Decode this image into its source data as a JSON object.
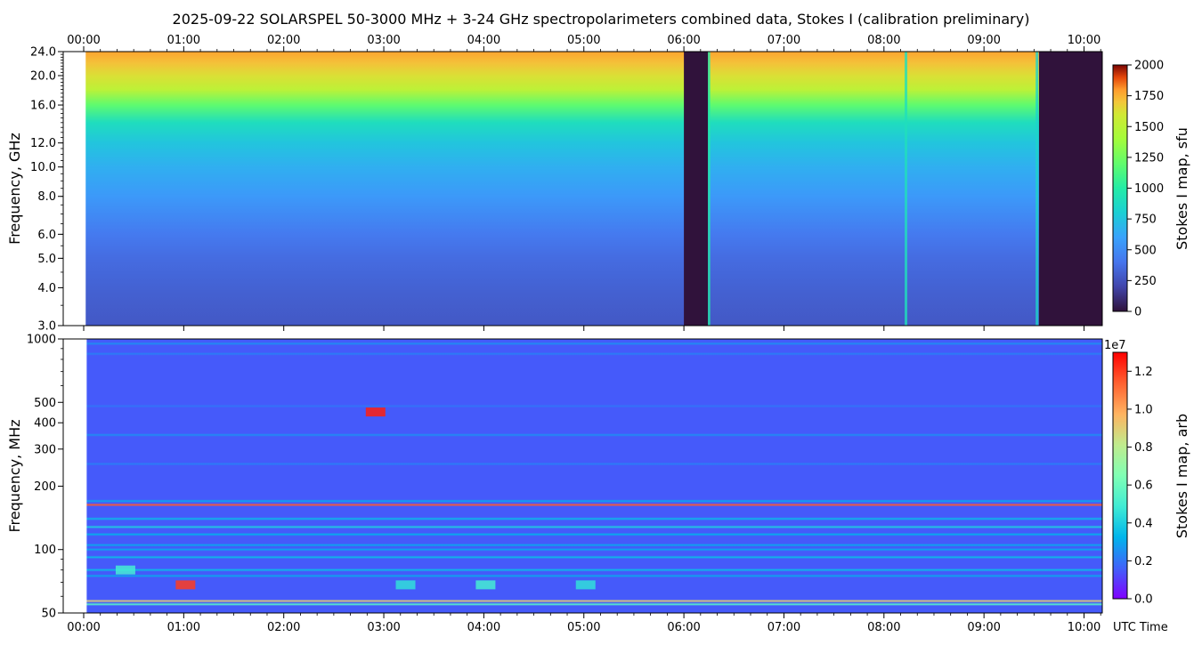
{
  "title": "2025-09-22  SOLARSPEL  50-3000 MHz  +  3-24 GHz  spectropolarimeters combined data,  Stokes I  (calibration preliminary)",
  "x_tick_labels": [
    "00:00",
    "01:00",
    "02:00",
    "03:00",
    "04:00",
    "05:00",
    "06:00",
    "07:00",
    "08:00",
    "09:00",
    "10:00"
  ],
  "x_axis_label": "UTC Time",
  "top_panel": {
    "ylabel": "Frequency, GHz",
    "y_tick_labels": [
      "3.0",
      "4.0",
      "5.0",
      "6.0",
      "8.0",
      "10.0",
      "12.0",
      "16.0",
      "20.0",
      "24.0"
    ],
    "colorbar_label": "Stokes I map, sfu",
    "colorbar_ticks": [
      "0",
      "250",
      "500",
      "750",
      "1000",
      "1250",
      "1500",
      "1750",
      "2000"
    ]
  },
  "bottom_panel": {
    "ylabel": "Frequency, MHz",
    "y_tick_labels": [
      "50",
      "100",
      "200",
      "300",
      "400",
      "500",
      "1000"
    ],
    "colorbar_label": "Stokes I map, arb",
    "colorbar_ticks": [
      "0.0",
      "0.2",
      "0.4",
      "0.6",
      "0.8",
      "1.0",
      "1.2"
    ],
    "colorbar_offset": "1e7"
  },
  "chart_data": [
    {
      "type": "heatmap",
      "title": "2025-09-22  SOLARSPEL  50-3000 MHz  +  3-24 GHz  spectropolarimeters combined data,  Stokes I  (calibration preliminary)",
      "x_unit": "UTC hours",
      "xlim": [
        0.0,
        10.2
      ],
      "ylabel": "Frequency, GHz",
      "y_scale": "log",
      "ylim": [
        3.0,
        24.0
      ],
      "colorbar_label": "Stokes I map, sfu",
      "clim": [
        0,
        2000
      ],
      "colormap": "turbo",
      "data_start": 0.02,
      "frequency_profile": [
        {
          "f": 3.0,
          "v": 200
        },
        {
          "f": 4.0,
          "v": 230
        },
        {
          "f": 5.0,
          "v": 260
        },
        {
          "f": 6.0,
          "v": 300
        },
        {
          "f": 8.0,
          "v": 400
        },
        {
          "f": 10.0,
          "v": 470
        },
        {
          "f": 12.0,
          "v": 540
        },
        {
          "f": 14.0,
          "v": 640
        },
        {
          "f": 16.0,
          "v": 850
        },
        {
          "f": 18.0,
          "v": 1080
        },
        {
          "f": 20.0,
          "v": 1180
        },
        {
          "f": 22.0,
          "v": 1300
        },
        {
          "f": 24.0,
          "v": 1400
        }
      ],
      "data_gaps": [
        {
          "start": 6.0,
          "end": 6.24
        },
        {
          "start": 9.55,
          "end": 10.2
        }
      ],
      "narrow_features": [
        {
          "time": 8.22,
          "value": 650
        },
        {
          "time": 6.25,
          "value": 700
        },
        {
          "time": 9.53,
          "value": 600
        }
      ]
    },
    {
      "type": "heatmap",
      "x_unit": "UTC hours",
      "xlim": [
        0.0,
        10.2
      ],
      "xlabel": "UTC Time",
      "ylabel": "Frequency, MHz",
      "y_scale": "log",
      "ylim": [
        50,
        1000
      ],
      "colorbar_label": "Stokes I map, arb",
      "clim": [
        0.0,
        1.3
      ],
      "colorbar_scale": "1e7",
      "colormap": "rainbow",
      "data_start": 0.03,
      "background_value": 0.15,
      "bands": [
        {
          "f": 55,
          "v": 0.55
        },
        {
          "f": 57,
          "v": 0.9
        },
        {
          "f": 75,
          "v": 0.3
        },
        {
          "f": 80,
          "v": 0.35
        },
        {
          "f": 92,
          "v": 0.35
        },
        {
          "f": 100,
          "v": 0.3
        },
        {
          "f": 105,
          "v": 0.3
        },
        {
          "f": 118,
          "v": 0.32
        },
        {
          "f": 128,
          "v": 0.4
        },
        {
          "f": 140,
          "v": 0.35
        },
        {
          "f": 163,
          "v": 1.15
        },
        {
          "f": 170,
          "v": 0.3
        },
        {
          "f": 255,
          "v": 0.22
        },
        {
          "f": 350,
          "v": 0.25
        },
        {
          "f": 480,
          "v": 0.2
        },
        {
          "f": 850,
          "v": 0.22
        },
        {
          "f": 950,
          "v": 0.25
        }
      ],
      "bursts": [
        {
          "time": 1.0,
          "f": 68,
          "v": 1.2
        },
        {
          "time": 2.9,
          "f": 450,
          "v": 1.25
        },
        {
          "time": 0.4,
          "f": 80,
          "v": 0.5
        },
        {
          "time": 3.2,
          "f": 68,
          "v": 0.45
        },
        {
          "time": 4.0,
          "f": 68,
          "v": 0.5
        },
        {
          "time": 5.0,
          "f": 68,
          "v": 0.45
        }
      ]
    }
  ]
}
